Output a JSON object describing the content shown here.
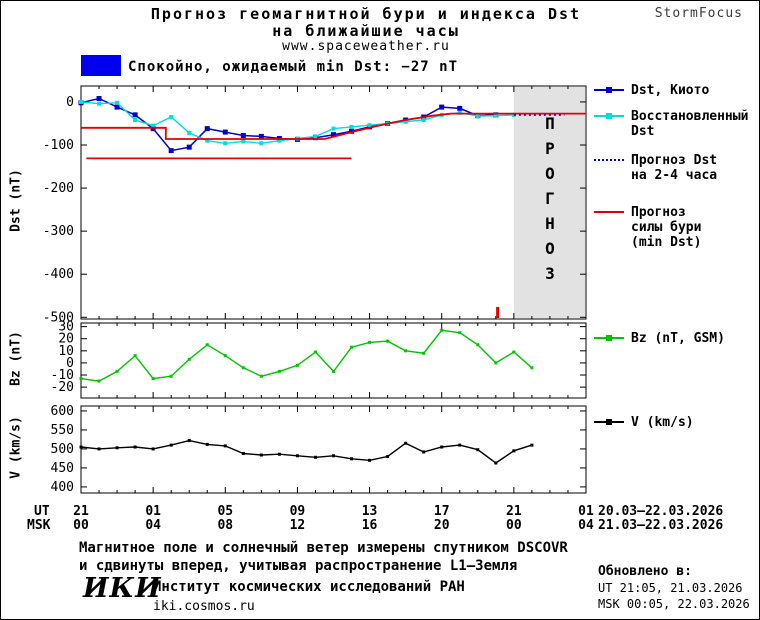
{
  "header": {
    "title_line1": "Прогноз геомагнитной бури и индекса Dst",
    "title_line2": "на ближайшие часы",
    "subtitle": "www.spaceweather.ru",
    "brand": "StormFocus"
  },
  "status": {
    "label": "Спокойно, ожидаемый min Dst: −27 nT",
    "color": "#0000ee"
  },
  "axis": {
    "ut_label": "UT",
    "msk_label": "MSK",
    "tick_hours": [
      0,
      4,
      8,
      12,
      16,
      20,
      24,
      28
    ],
    "ut_ticks": [
      "21",
      "01",
      "05",
      "09",
      "13",
      "17",
      "21",
      "01"
    ],
    "msk_ticks": [
      "00",
      "04",
      "08",
      "12",
      "16",
      "20",
      "00",
      "04"
    ],
    "ut_date": "20.03–22.03.2026",
    "msk_date": "21.03–22.03.2026"
  },
  "chart_data": [
    {
      "type": "line",
      "ylabel": "Dst (nT)",
      "ylim": [
        -500,
        35
      ],
      "yticks": [
        0,
        -100,
        -200,
        -300,
        -400,
        -500
      ],
      "xlim_hours": [
        0,
        28
      ],
      "x_description": "часы; ось подписана метками UT/MSK",
      "forecast_band": {
        "start_hour": 24,
        "end_hour": 28,
        "label": "ПРОГНОЗ",
        "fill": "#e2e2e2"
      },
      "now_marker_hour": 23.1,
      "series": [
        {
          "name": "Dst, Киото",
          "color": "#0000cc",
          "marker": "square",
          "marker_size": 5,
          "width": 1.5,
          "x": [
            0,
            1,
            2,
            3,
            4,
            5,
            6,
            7,
            8,
            9,
            10,
            11,
            12,
            13,
            14,
            15,
            16,
            17,
            18,
            19,
            20,
            21,
            22,
            23
          ],
          "y": [
            -2,
            8,
            -12,
            -30,
            -62,
            -113,
            -105,
            -62,
            -70,
            -78,
            -80,
            -85,
            -87,
            -83,
            -76,
            -68,
            -58,
            -50,
            -42,
            -35,
            -12,
            -15,
            -32,
            -30
          ]
        },
        {
          "name": "Восстановленный Dst",
          "color": "#00dddd",
          "marker": "square",
          "marker_size": 4,
          "width": 1.4,
          "x": [
            0,
            1,
            2,
            3,
            4,
            5,
            6,
            7,
            8,
            9,
            10,
            11,
            12,
            13,
            14,
            15,
            16,
            17,
            18,
            19,
            20,
            21,
            22,
            23,
            24
          ],
          "y": [
            0,
            -4,
            -2,
            -42,
            -55,
            -35,
            -72,
            -90,
            -96,
            -92,
            -96,
            -90,
            -85,
            -80,
            -62,
            -58,
            -54,
            -50,
            -46,
            -42,
            -30,
            -25,
            -33,
            -32,
            -30
          ]
        },
        {
          "name": "Прогноз Dst на 2-4 часа",
          "color": "#0000cc",
          "style": "dotted",
          "width": 1.8,
          "x": [
            24,
            26.8
          ],
          "y": [
            -30,
            -30
          ]
        },
        {
          "name": "Прогноз силы бури (min Dst)",
          "color": "#e00000",
          "width": 1.8,
          "x": [
            0,
            4.7,
            4.7,
            13.5,
            15,
            16.5,
            18,
            19.5,
            20.5,
            28,
            null,
            0.3,
            15
          ],
          "y": [
            -60,
            -60,
            -86,
            -86,
            -70,
            -55,
            -42,
            -32,
            -27,
            -27,
            null,
            -131,
            -131
          ]
        }
      ]
    },
    {
      "type": "line",
      "ylabel": "Bz (nT)",
      "ylim": [
        -20,
        30
      ],
      "yticks": [
        30,
        20,
        10,
        0,
        -10,
        -20
      ],
      "xlim_hours": [
        0,
        28
      ],
      "series": [
        {
          "name": "Bz (nT, GSM)",
          "color": "#00c400",
          "marker": "square",
          "marker_size": 3,
          "width": 1.4,
          "x": [
            0,
            1,
            2,
            3,
            4,
            5,
            6,
            7,
            8,
            9,
            10,
            11,
            12,
            13,
            14,
            15,
            16,
            17,
            18,
            19,
            20,
            21,
            22,
            23,
            24,
            25
          ],
          "y": [
            -13,
            -15,
            -7,
            6,
            -13,
            -11,
            3,
            15,
            6,
            -4,
            -11,
            -7,
            -2,
            9,
            -7,
            13,
            17,
            18,
            10,
            8,
            27,
            25,
            15,
            0,
            9,
            -4
          ]
        }
      ]
    },
    {
      "type": "line",
      "ylabel": "V (km/s)",
      "ylim": [
        400,
        600
      ],
      "yticks": [
        600,
        550,
        500,
        450,
        400
      ],
      "xlim_hours": [
        0,
        28
      ],
      "series": [
        {
          "name": "V (km/s)",
          "color": "#000000",
          "marker": "square",
          "marker_size": 3,
          "width": 1.4,
          "x": [
            0,
            1,
            2,
            3,
            4,
            5,
            6,
            7,
            8,
            9,
            10,
            11,
            12,
            13,
            14,
            15,
            16,
            17,
            18,
            19,
            20,
            21,
            22,
            23,
            24,
            25
          ],
          "y": [
            505,
            500,
            503,
            505,
            500,
            510,
            522,
            512,
            508,
            488,
            484,
            486,
            482,
            478,
            482,
            474,
            470,
            480,
            515,
            492,
            505,
            510,
            498,
            463,
            495,
            510
          ]
        }
      ]
    }
  ],
  "legend": {
    "items": [
      {
        "lines": [
          "Dst, Киото"
        ]
      },
      {
        "lines": [
          "Восстановленный",
          "Dst"
        ]
      },
      {
        "lines": [
          "Прогноз Dst",
          "на 2-4 часа"
        ]
      },
      {
        "lines": [
          "Прогноз",
          "силы бури",
          "(min Dst)"
        ]
      },
      {
        "lines": [
          "Bz (nT, GSM)"
        ]
      },
      {
        "lines": [
          "V (km/s)"
        ]
      }
    ]
  },
  "footnote": {
    "line1": "Магнитное поле и солнечный ветер измерены спутником DSCOVR",
    "line2": "и сдвинуты вперед, учитывая распространение L1–Земля"
  },
  "footer": {
    "logo": "ИКИ",
    "institute": "Институт космических исследований РАН",
    "site": "iki.cosmos.ru",
    "updated_label": "Обновлено в:",
    "updated_ut": "UT  21:05, 21.03.2026",
    "updated_msk": "MSK 00:05, 22.03.2026"
  }
}
